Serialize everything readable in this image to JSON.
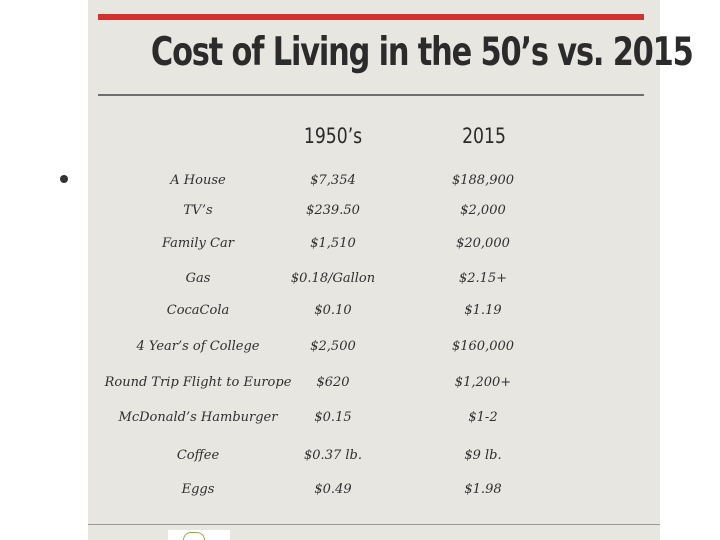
{
  "poster": {
    "title": "Cost of Living in the 50’s vs. 2015",
    "col_1950": "1950’s",
    "col_2015": "2015",
    "rows": [
      {
        "item": "A House",
        "v1950": "$7,354",
        "v2015": "$188,900"
      },
      {
        "item": "TV’s",
        "v1950": "$239.50",
        "v2015": "$2,000"
      },
      {
        "item": "Family Car",
        "v1950": "$1,510",
        "v2015": "$20,000"
      },
      {
        "item": "Gas",
        "v1950": "$0.18/Gallon",
        "v2015": "$2.15+"
      },
      {
        "item": "CocaCola",
        "v1950": "$0.10",
        "v2015": "$1.19"
      },
      {
        "item": "4 Year’s of College",
        "v1950": "$2,500",
        "v2015": "$160,000"
      },
      {
        "item": "Round Trip Flight to Europe",
        "v1950": "$620",
        "v2015": "$1,200+"
      },
      {
        "item": "McDonald’s Hamburger",
        "v1950": "$0.15",
        "v2015": "$1-2"
      },
      {
        "item": "Coffee",
        "v1950": "$0.37 lb.",
        "v2015": "$9 lb."
      },
      {
        "item": "Eggs",
        "v1950": "$0.49",
        "v2015": "$1.98"
      }
    ]
  },
  "colors": {
    "accent_bar": "#d3322e",
    "poster_bg": "#e7e6e1",
    "text": "#2b2b2b"
  },
  "icons": {
    "bullet": "bullet-dot-icon"
  }
}
